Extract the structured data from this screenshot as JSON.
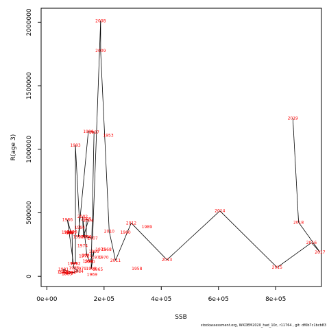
{
  "chart_data": {
    "type": "line",
    "xlabel": "SSB",
    "ylabel": "R(age 3)",
    "xlim": [
      -20000,
      960000
    ],
    "ylim": [
      -80000,
      2110000
    ],
    "x_ticks": [
      0,
      200000,
      400000,
      600000,
      800000
    ],
    "x_tick_labels": [
      "0e+00",
      "2e+05",
      "4e+05",
      "6e+05",
      "8e+05"
    ],
    "y_ticks": [
      0,
      500000,
      1000000,
      1500000,
      2000000
    ],
    "y_tick_labels": [
      "0",
      "500000",
      "1000000",
      "1500000",
      "2000000"
    ],
    "grid": false,
    "label_color": "#ff0000",
    "line_color": "#000000",
    "points": [
      {
        "year": "1978",
        "x": 55000,
        "y": 32000
      },
      {
        "year": "1979",
        "x": 75000,
        "y": 25000
      },
      {
        "year": "1980",
        "x": 60000,
        "y": 30000
      },
      {
        "year": "1981",
        "x": 58000,
        "y": 55000
      },
      {
        "year": "1982",
        "x": 85000,
        "y": 30000
      },
      {
        "year": "1983",
        "x": 70000,
        "y": 20000
      },
      {
        "year": "1984",
        "x": 110000,
        "y": 40000
      },
      {
        "year": "1985",
        "x": 95000,
        "y": 65000
      },
      {
        "year": "1986",
        "x": 72000,
        "y": 445000
      },
      {
        "year": "1987",
        "x": 85000,
        "y": 340000
      },
      {
        "year": "1988",
        "x": 70000,
        "y": 345000
      },
      {
        "year": "1989",
        "x": 78000,
        "y": 345000
      },
      {
        "year": "1990",
        "x": 88000,
        "y": 350000
      },
      {
        "year": "1991",
        "x": 90000,
        "y": 100000
      },
      {
        "year": "1992",
        "x": 100000,
        "y": 100000
      },
      {
        "year": "1993",
        "x": 100000,
        "y": 1030000
      },
      {
        "year": "1994",
        "x": 115000,
        "y": 385000
      },
      {
        "year": "1995",
        "x": 110000,
        "y": 310000
      },
      {
        "year": "1996",
        "x": 145000,
        "y": 1140000
      },
      {
        "year": "1997",
        "x": 165000,
        "y": 1135000
      },
      {
        "year": "1998",
        "x": 155000,
        "y": 60000
      },
      {
        "year": "1999",
        "x": 165000,
        "y": 195000
      },
      {
        "year": "2000",
        "x": 150000,
        "y": 115000
      },
      {
        "year": "2001",
        "x": 140000,
        "y": 165000
      },
      {
        "year": "2002",
        "x": 125000,
        "y": 470000
      },
      {
        "year": "2003",
        "x": 128000,
        "y": 310000
      },
      {
        "year": "2004",
        "x": 145000,
        "y": 440000
      },
      {
        "year": "2005",
        "x": 138000,
        "y": 450000
      },
      {
        "year": "2006",
        "x": 138000,
        "y": 310000
      },
      {
        "year": "2007",
        "x": 160000,
        "y": 300000
      },
      {
        "year": "2008",
        "x": 188000,
        "y": 2010000
      },
      {
        "year": "2009",
        "x": 188000,
        "y": 1775000
      },
      {
        "year": "2010",
        "x": 218000,
        "y": 355000
      },
      {
        "year": "2011",
        "x": 240000,
        "y": 125000
      },
      {
        "year": "2012",
        "x": 295000,
        "y": 420000
      },
      {
        "year": "2013",
        "x": 420000,
        "y": 130000
      },
      {
        "year": "2014",
        "x": 605000,
        "y": 515000
      },
      {
        "year": "2015",
        "x": 805000,
        "y": 70000
      },
      {
        "year": "2016",
        "x": 925000,
        "y": 265000
      },
      {
        "year": "2017",
        "x": 955000,
        "y": 190000
      },
      {
        "year": "2018",
        "x": 880000,
        "y": 425000
      },
      {
        "year": "2019",
        "x": 860000,
        "y": 1245000
      }
    ],
    "extra_labels": [
      {
        "text": "1989",
        "x": 350000,
        "y": 390000
      },
      {
        "text": "1960",
        "x": 275000,
        "y": 345000
      },
      {
        "text": "1958",
        "x": 315000,
        "y": 60000
      },
      {
        "text": "1953",
        "x": 215000,
        "y": 1110000
      },
      {
        "text": "1965",
        "x": 178000,
        "y": 55000
      },
      {
        "text": "1968",
        "x": 208000,
        "y": 210000
      },
      {
        "text": "1969",
        "x": 158000,
        "y": 15000
      },
      {
        "text": "1970",
        "x": 198000,
        "y": 150000
      },
      {
        "text": "1975",
        "x": 188000,
        "y": 210000
      },
      {
        "text": "1974",
        "x": 125000,
        "y": 240000
      },
      {
        "text": "1972",
        "x": 130000,
        "y": 160000
      },
      {
        "text": "1977",
        "x": 175000,
        "y": 150000
      },
      {
        "text": "1979",
        "x": 120000,
        "y": 60000
      },
      {
        "text": "1964",
        "x": 143000,
        "y": 120000
      }
    ]
  },
  "footer": {
    "credit": "stockassessment.org,  WKDEM2020_had_10c,  r11764 ,  git: df0b7c1bcb83"
  }
}
